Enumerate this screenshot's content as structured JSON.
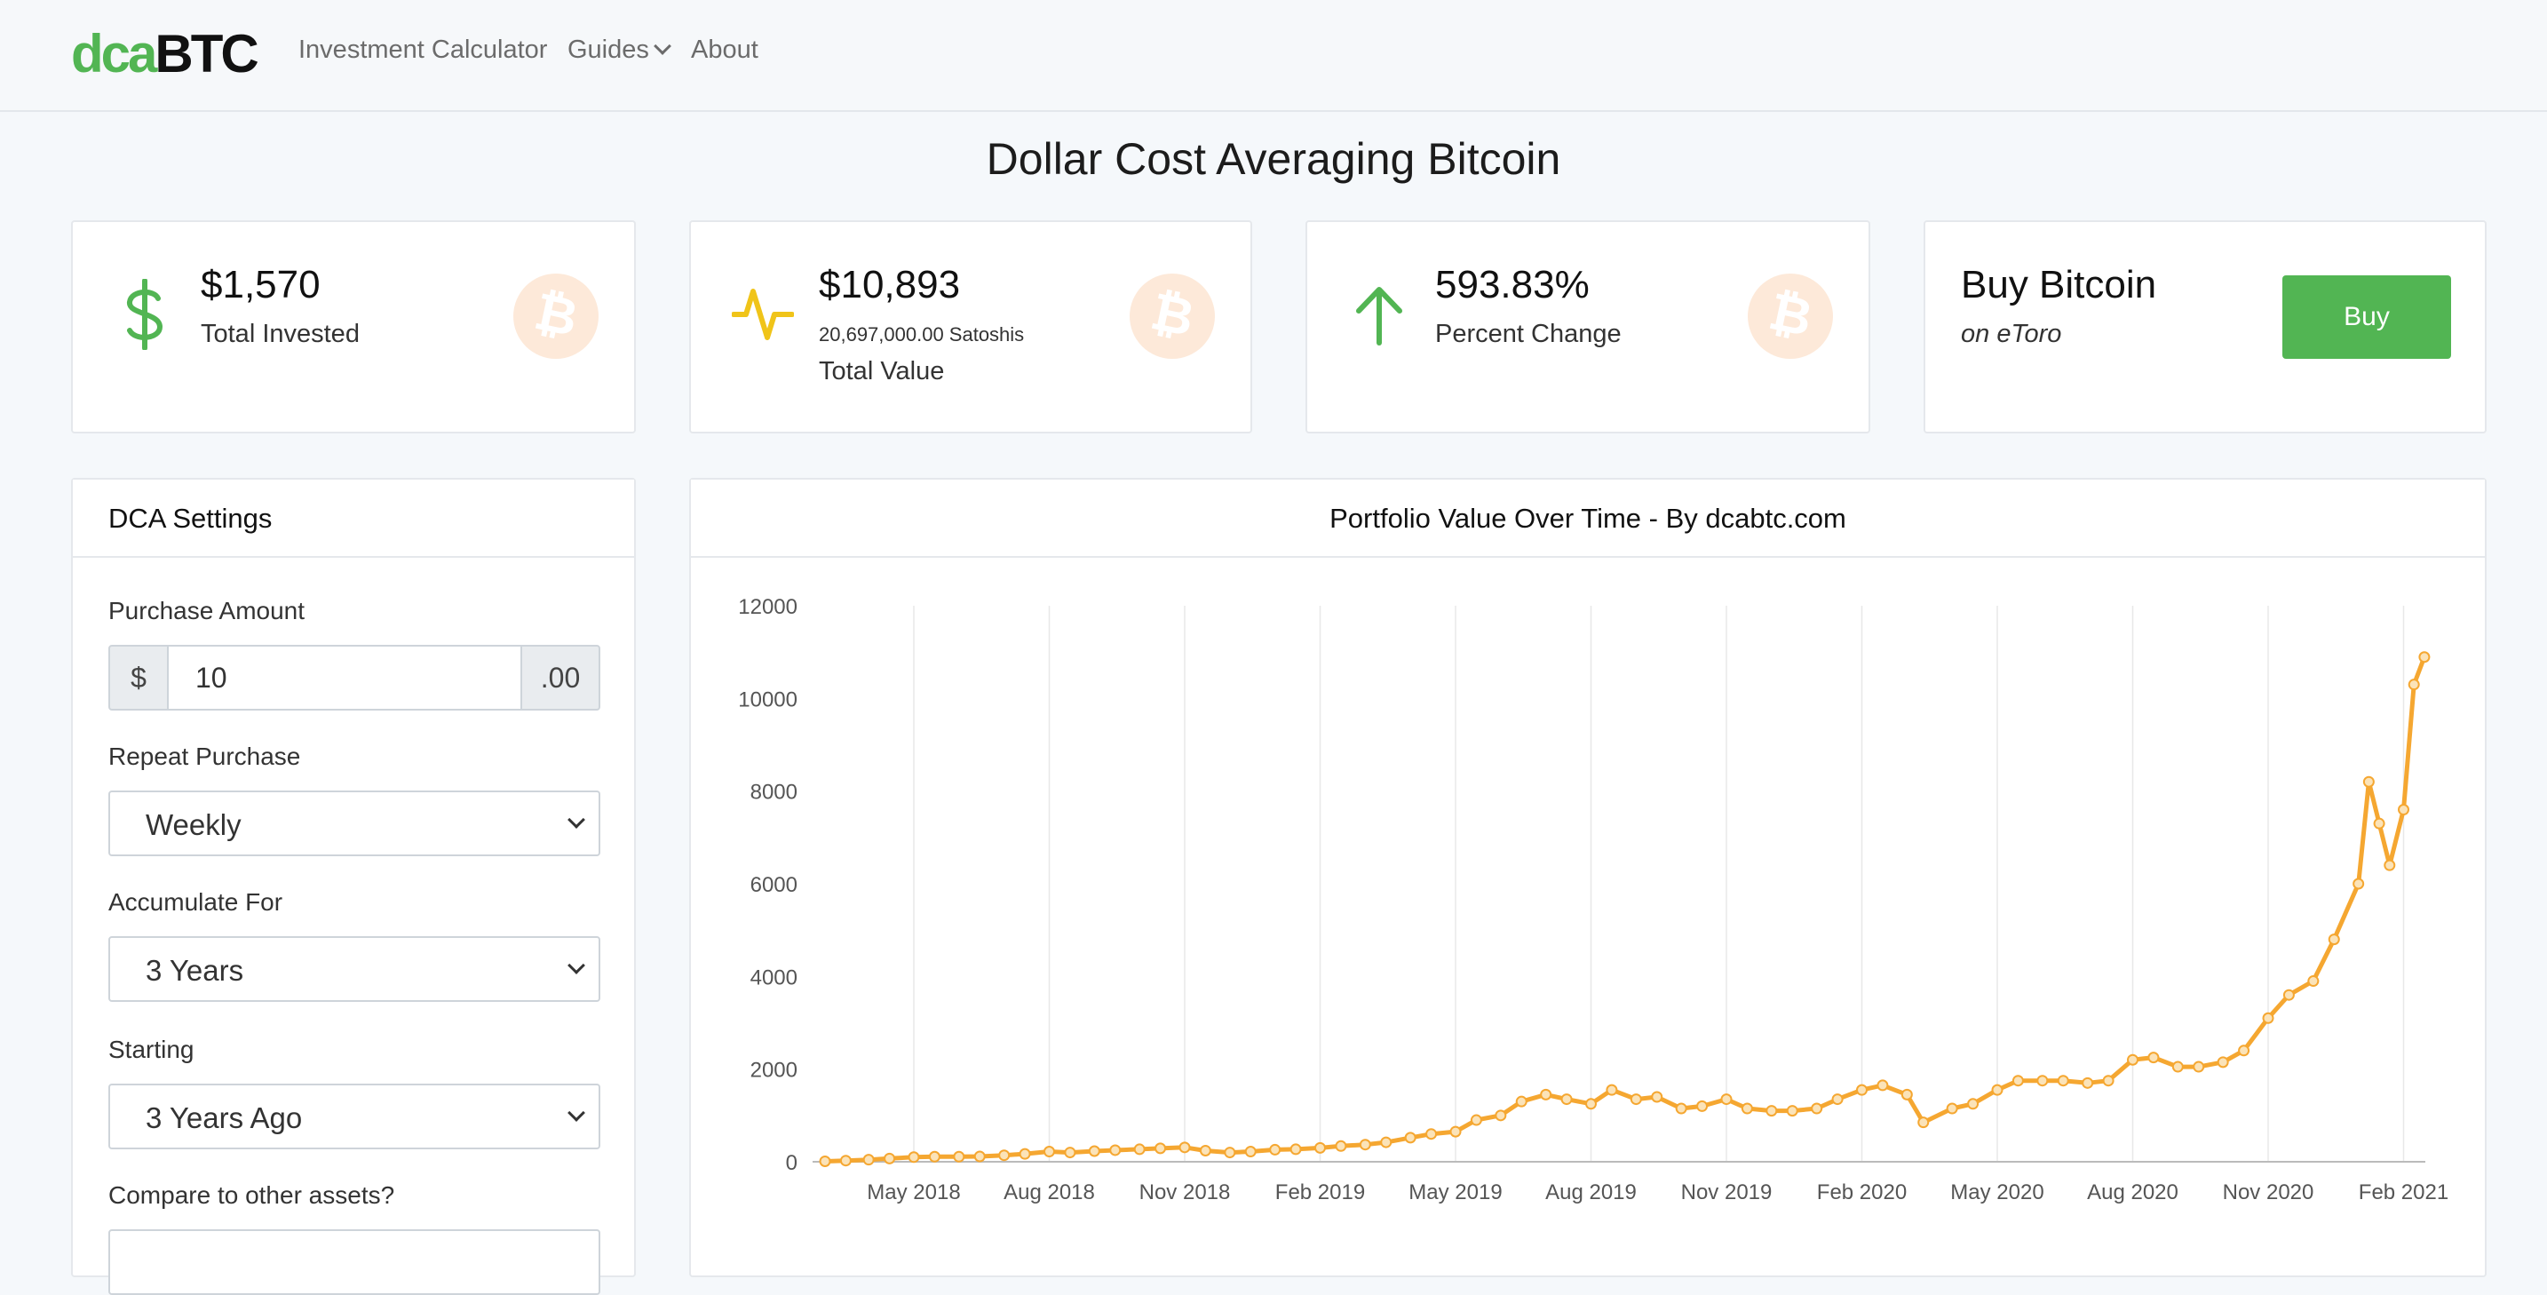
{
  "nav": {
    "logo_a": "dca",
    "logo_b": "BTC",
    "links": [
      "Investment Calculator",
      "Guides",
      "About"
    ]
  },
  "page": {
    "title": "Dollar Cost Averaging Bitcoin"
  },
  "stats": {
    "invested": {
      "value": "$1,570",
      "label": "Total Invested",
      "icon": "dollar-icon"
    },
    "total_value": {
      "value": "$10,893",
      "sats": "20,697,000.00 Satoshis",
      "label": "Total Value",
      "icon": "pulse-icon"
    },
    "change": {
      "value": "593.83%",
      "label": "Percent Change",
      "icon": "arrow-up-icon"
    },
    "buy": {
      "title": "Buy Bitcoin",
      "subtitle": "on eToro",
      "button": "Buy"
    }
  },
  "settings": {
    "title": "DCA Settings",
    "purchase_amount": {
      "label": "Purchase Amount",
      "prefix": "$",
      "value": "10",
      "suffix": ".00"
    },
    "repeat": {
      "label": "Repeat Purchase",
      "value": "Weekly"
    },
    "accumulate": {
      "label": "Accumulate For",
      "value": "3 Years"
    },
    "starting": {
      "label": "Starting",
      "value": "3 Years Ago"
    },
    "compare": {
      "label": "Compare to other assets?"
    }
  },
  "colors": {
    "green": "#52b553",
    "orange": "#f5a731",
    "yellow": "#f0c419"
  },
  "chart_data": {
    "type": "line",
    "title": "Portfolio Value Over Time - By dcabtc.com",
    "x_tick_labels": [
      "May 2018",
      "Aug 2018",
      "Nov 2018",
      "Feb 2019",
      "May 2019",
      "Aug 2019",
      "Nov 2019",
      "Feb 2020",
      "May 2020",
      "Aug 2020",
      "Nov 2020",
      "Feb 2021"
    ],
    "ylim": [
      0,
      12000
    ],
    "y_ticks": [
      0,
      2000,
      4000,
      6000,
      8000,
      10000,
      12000
    ],
    "grid": "vertical",
    "series": [
      {
        "points": [
          [
            "2018-03-02",
            10
          ],
          [
            "2018-03-16",
            25
          ],
          [
            "2018-04-01",
            45
          ],
          [
            "2018-04-15",
            70
          ],
          [
            "2018-05-01",
            100
          ],
          [
            "2018-05-15",
            110
          ],
          [
            "2018-06-01",
            110
          ],
          [
            "2018-06-15",
            115
          ],
          [
            "2018-07-01",
            140
          ],
          [
            "2018-07-15",
            170
          ],
          [
            "2018-08-01",
            220
          ],
          [
            "2018-08-15",
            200
          ],
          [
            "2018-09-01",
            230
          ],
          [
            "2018-09-15",
            250
          ],
          [
            "2018-10-01",
            270
          ],
          [
            "2018-10-15",
            290
          ],
          [
            "2018-11-01",
            310
          ],
          [
            "2018-11-15",
            240
          ],
          [
            "2018-12-01",
            200
          ],
          [
            "2018-12-15",
            220
          ],
          [
            "2019-01-01",
            260
          ],
          [
            "2019-01-15",
            270
          ],
          [
            "2019-02-01",
            300
          ],
          [
            "2019-02-15",
            340
          ],
          [
            "2019-03-01",
            370
          ],
          [
            "2019-03-15",
            420
          ],
          [
            "2019-04-01",
            520
          ],
          [
            "2019-04-15",
            600
          ],
          [
            "2019-05-01",
            650
          ],
          [
            "2019-05-15",
            900
          ],
          [
            "2019-06-01",
            1000
          ],
          [
            "2019-06-15",
            1300
          ],
          [
            "2019-07-01",
            1450
          ],
          [
            "2019-07-15",
            1350
          ],
          [
            "2019-08-01",
            1250
          ],
          [
            "2019-08-15",
            1550
          ],
          [
            "2019-09-01",
            1350
          ],
          [
            "2019-09-15",
            1400
          ],
          [
            "2019-10-01",
            1150
          ],
          [
            "2019-10-15",
            1200
          ],
          [
            "2019-11-01",
            1350
          ],
          [
            "2019-11-15",
            1150
          ],
          [
            "2019-12-01",
            1100
          ],
          [
            "2019-12-15",
            1100
          ],
          [
            "2020-01-01",
            1150
          ],
          [
            "2020-01-15",
            1350
          ],
          [
            "2020-02-01",
            1550
          ],
          [
            "2020-02-15",
            1650
          ],
          [
            "2020-03-01",
            1450
          ],
          [
            "2020-03-12",
            850
          ],
          [
            "2020-04-01",
            1150
          ],
          [
            "2020-04-15",
            1250
          ],
          [
            "2020-05-01",
            1550
          ],
          [
            "2020-05-15",
            1750
          ],
          [
            "2020-06-01",
            1750
          ],
          [
            "2020-06-15",
            1750
          ],
          [
            "2020-07-01",
            1700
          ],
          [
            "2020-07-15",
            1750
          ],
          [
            "2020-08-01",
            2200
          ],
          [
            "2020-08-15",
            2250
          ],
          [
            "2020-09-01",
            2050
          ],
          [
            "2020-09-15",
            2050
          ],
          [
            "2020-10-01",
            2150
          ],
          [
            "2020-10-15",
            2400
          ],
          [
            "2020-11-01",
            3100
          ],
          [
            "2020-11-15",
            3600
          ],
          [
            "2020-12-01",
            3900
          ],
          [
            "2020-12-15",
            4800
          ],
          [
            "2021-01-01",
            6000
          ],
          [
            "2021-01-08",
            8200
          ],
          [
            "2021-01-15",
            7300
          ],
          [
            "2021-01-22",
            6400
          ],
          [
            "2021-02-01",
            7600
          ],
          [
            "2021-02-08",
            10300
          ],
          [
            "2021-02-15",
            10893
          ]
        ]
      }
    ]
  }
}
